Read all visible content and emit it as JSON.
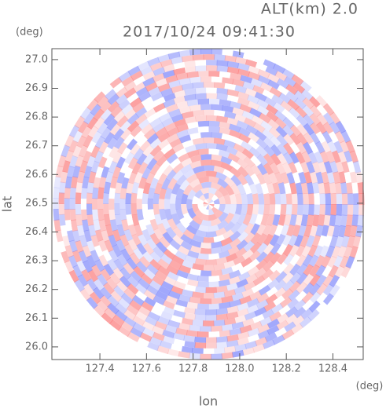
{
  "chart_data": {
    "type": "radar-ppi",
    "title": "2017/10/24 09:41:30",
    "subtitle": "ALT(km) 2.0",
    "x_label": "lon",
    "y_label": "lat",
    "x_unit": "(deg)",
    "y_unit": "(deg)",
    "xlim": [
      127.194,
      128.53
    ],
    "ylim": [
      25.956,
      27.038
    ],
    "xticks": [
      127.4,
      127.6,
      127.8,
      {
        "value": 128,
        "label": "128.0"
      },
      128.2,
      128.4
    ],
    "yticks": [
      {
        "value": 26,
        "label": "26.0"
      },
      26.1,
      26.2,
      26.3,
      26.4,
      26.5,
      26.6,
      26.7,
      26.8,
      26.9,
      {
        "value": 27,
        "label": "27.0"
      }
    ],
    "center": [
      127.867,
      26.497
    ]
  }
}
